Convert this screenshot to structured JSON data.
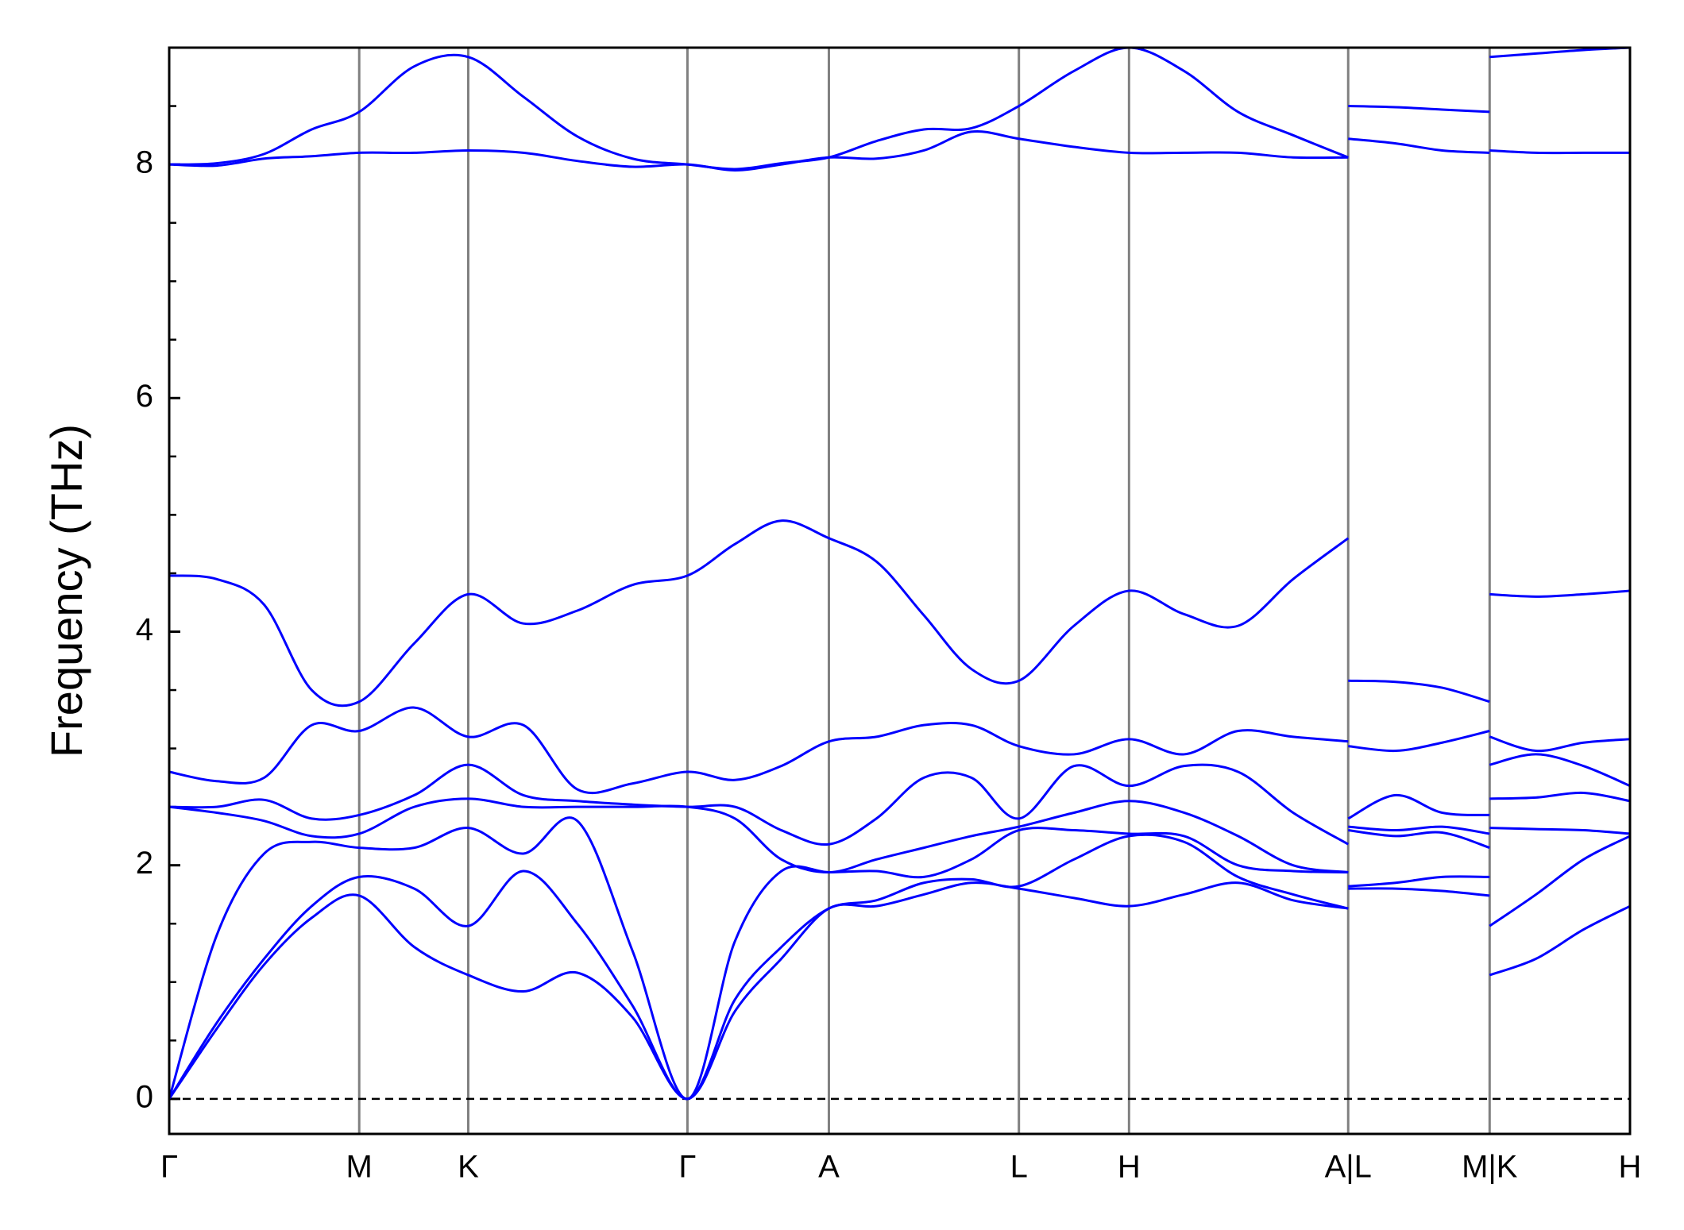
{
  "chart_data": {
    "type": "line",
    "ylabel": "Frequency (THz)",
    "x": [
      0,
      0.44,
      0.88,
      1.32,
      1.76,
      2.27,
      2.77,
      3.28,
      3.78,
      4.29,
      4.8,
      5.24,
      5.67,
      6.11,
      6.55,
      6.99,
      7.43,
      7.87,
      8.38,
      8.89,
      9.4,
      9.9,
      10.41,
      10.92,
      null,
      10.92,
      11.36,
      11.79,
      12.23,
      null,
      12.23,
      12.66,
      13.1,
      13.53
    ],
    "series": [
      {
        "color": "#0000ff",
        "values": [
          0,
          0.6,
          1.15,
          1.55,
          1.74,
          1.3,
          1.06,
          0.92,
          1.08,
          0.7,
          0,
          0.75,
          1.2,
          1.63,
          1.65,
          1.75,
          1.85,
          1.8,
          1.72,
          1.65,
          1.75,
          1.85,
          1.7,
          1.63,
          null,
          1.8,
          1.8,
          1.78,
          1.74,
          null,
          1.06,
          1.2,
          1.45,
          1.65
        ]
      },
      {
        "color": "#0000ff",
        "values": [
          0,
          0.65,
          1.2,
          1.65,
          1.9,
          1.8,
          1.48,
          1.95,
          1.5,
          0.8,
          0,
          0.85,
          1.3,
          1.63,
          1.7,
          1.85,
          1.88,
          1.82,
          2.05,
          2.25,
          2.2,
          1.9,
          1.75,
          1.63,
          null,
          1.82,
          1.85,
          1.9,
          1.9,
          null,
          1.48,
          1.75,
          2.05,
          2.25
        ]
      },
      {
        "color": "#0000ff",
        "values": [
          0,
          1.4,
          2.1,
          2.2,
          2.15,
          2.15,
          2.32,
          2.1,
          2.38,
          1.27,
          0,
          1.35,
          1.95,
          1.94,
          1.95,
          1.9,
          2.05,
          2.3,
          2.3,
          2.27,
          2.25,
          2.0,
          1.95,
          1.94,
          null,
          2.3,
          2.25,
          2.28,
          2.15,
          null,
          2.32,
          2.31,
          2.3,
          2.27
        ]
      },
      {
        "color": "#0000ff",
        "values": [
          2.5,
          2.45,
          2.38,
          2.25,
          2.27,
          2.5,
          2.57,
          2.5,
          2.5,
          2.5,
          2.5,
          2.4,
          2.05,
          1.94,
          2.05,
          2.15,
          2.25,
          2.33,
          2.45,
          2.55,
          2.45,
          2.25,
          2.0,
          1.94,
          null,
          2.33,
          2.3,
          2.33,
          2.27,
          null,
          2.57,
          2.58,
          2.62,
          2.55
        ]
      },
      {
        "color": "#0000ff",
        "values": [
          2.5,
          2.5,
          2.56,
          2.4,
          2.43,
          2.6,
          2.86,
          2.6,
          2.55,
          2.52,
          2.5,
          2.5,
          2.3,
          2.18,
          2.4,
          2.75,
          2.75,
          2.4,
          2.85,
          2.68,
          2.85,
          2.8,
          2.45,
          2.18,
          null,
          2.4,
          2.6,
          2.45,
          2.43,
          null,
          2.86,
          2.95,
          2.85,
          2.68
        ]
      },
      {
        "color": "#0000ff",
        "values": [
          2.8,
          2.72,
          2.75,
          3.2,
          3.15,
          3.35,
          3.1,
          3.2,
          2.65,
          2.7,
          2.8,
          2.73,
          2.85,
          3.06,
          3.1,
          3.2,
          3.2,
          3.02,
          2.95,
          3.08,
          2.95,
          3.15,
          3.1,
          3.06,
          null,
          3.02,
          2.98,
          3.05,
          3.15,
          null,
          3.1,
          2.98,
          3.05,
          3.08
        ]
      },
      {
        "color": "#0000ff",
        "values": [
          4.48,
          4.45,
          4.23,
          3.5,
          3.4,
          3.9,
          4.32,
          4.07,
          4.18,
          4.4,
          4.48,
          4.75,
          4.95,
          4.8,
          4.6,
          4.14,
          3.68,
          3.58,
          4.05,
          4.35,
          4.15,
          4.05,
          4.45,
          4.8,
          null,
          3.58,
          3.57,
          3.52,
          3.4,
          null,
          4.32,
          4.3,
          4.32,
          4.35
        ]
      },
      {
        "color": "#0000ff",
        "values": [
          8.0,
          7.99,
          8.05,
          8.07,
          8.1,
          8.1,
          8.12,
          8.1,
          8.03,
          7.98,
          8.0,
          7.95,
          8.0,
          8.06,
          8.05,
          8.12,
          8.28,
          8.22,
          8.15,
          8.1,
          8.1,
          8.1,
          8.06,
          8.06,
          null,
          8.22,
          8.18,
          8.12,
          8.1,
          null,
          8.12,
          8.1,
          8.1,
          8.1
        ]
      },
      {
        "color": "#0000ff",
        "values": [
          8.0,
          8.01,
          8.09,
          8.3,
          8.45,
          8.84,
          8.92,
          8.58,
          8.24,
          8.05,
          8.0,
          7.96,
          8.01,
          8.06,
          8.2,
          8.3,
          8.31,
          8.5,
          8.8,
          9.0,
          8.8,
          8.45,
          8.25,
          8.06,
          null,
          8.5,
          8.49,
          8.47,
          8.45,
          null,
          8.92,
          8.95,
          8.98,
          9.0
        ]
      }
    ],
    "xlim": [
      0,
      13.53
    ],
    "xticks": [
      {
        "value": 0,
        "label": "Γ"
      },
      {
        "value": 1.76,
        "label": "M"
      },
      {
        "value": 2.77,
        "label": "K"
      },
      {
        "value": 4.8,
        "label": "Γ"
      },
      {
        "value": 6.11,
        "label": "A"
      },
      {
        "value": 7.87,
        "label": "L"
      },
      {
        "value": 8.89,
        "label": "H"
      },
      {
        "value": 10.92,
        "label": "A|L"
      },
      {
        "value": 12.23,
        "label": "M|K"
      },
      {
        "value": 13.53,
        "label": "H"
      }
    ],
    "xtick_line_color": "#808080",
    "ylim": [
      -0.3,
      9.0
    ],
    "yticks": [
      0,
      2,
      4,
      6,
      8
    ],
    "yminorticks": [
      0.5,
      1,
      1.5,
      2.5,
      3,
      3.5,
      4.5,
      5,
      5.5,
      6.5,
      7,
      7.5,
      8.5
    ],
    "zero_line": true
  }
}
